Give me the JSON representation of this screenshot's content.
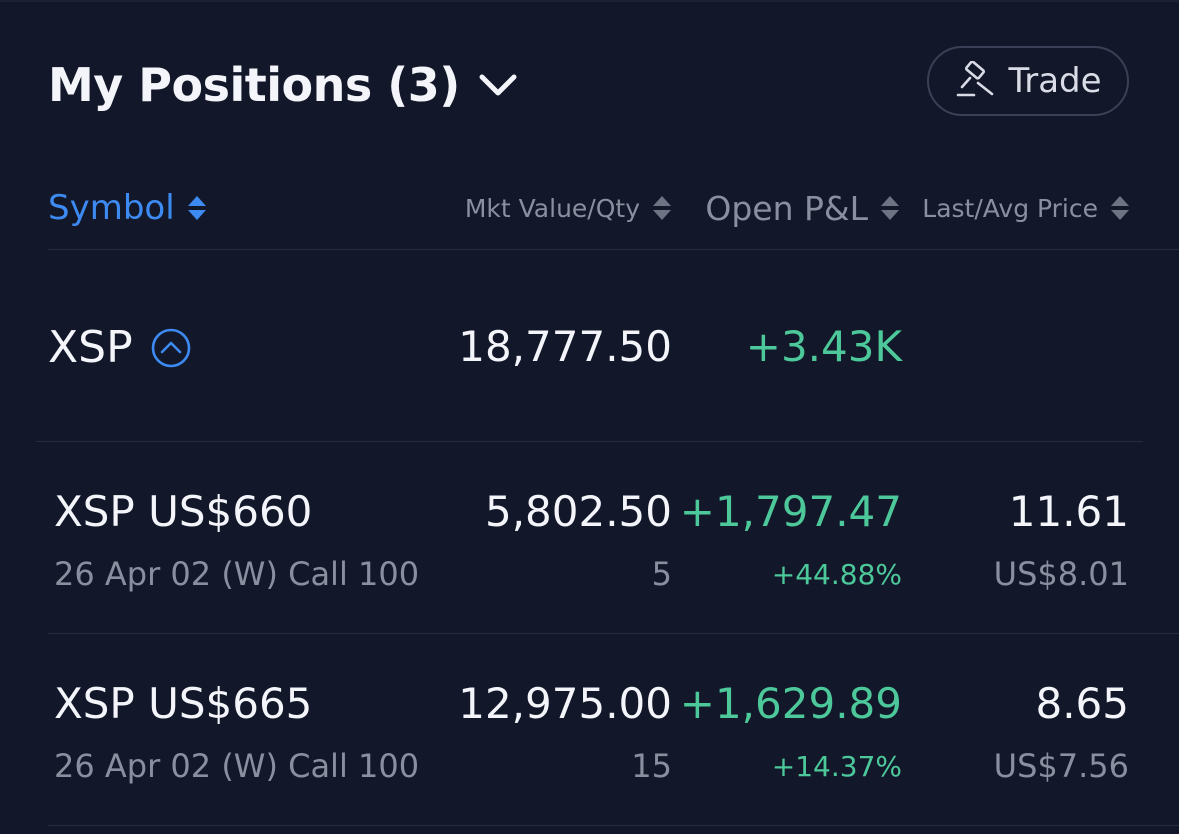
{
  "header": {
    "title": "My Positions (3)",
    "trade_label": "Trade"
  },
  "columns": {
    "symbol": "Symbol",
    "mkt_value_qty": "Mkt Value/Qty",
    "open_pnl": "Open P&L",
    "last_avg_price": "Last/Avg Price"
  },
  "group": {
    "symbol": "XSP",
    "mkt_value": "18,777.50",
    "open_pnl": "+3.43K"
  },
  "positions": [
    {
      "name": "XSP US$660",
      "detail": "26 Apr 02 (W) Call 100",
      "mkt_value": "5,802.50",
      "qty": "5",
      "pnl": "+1,797.47",
      "pnl_pct": "+44.88%",
      "last": "11.61",
      "avg": "US$8.01"
    },
    {
      "name": "XSP US$665",
      "detail": "26 Apr 02 (W) Call 100",
      "mkt_value": "12,975.00",
      "qty": "15",
      "pnl": "+1,629.89",
      "pnl_pct": "+14.37%",
      "last": "8.65",
      "avg": "US$7.56"
    }
  ],
  "colors": {
    "background": "#121829",
    "accent": "#3d8bf2",
    "positive": "#4cc89a",
    "muted": "#8a8fa0",
    "text": "#f4f5fa"
  },
  "icons": {
    "title_toggle": "chevron-down-icon",
    "trade": "gavel-icon",
    "sort": "sort-icon",
    "expand": "chevron-up-circle-icon"
  }
}
